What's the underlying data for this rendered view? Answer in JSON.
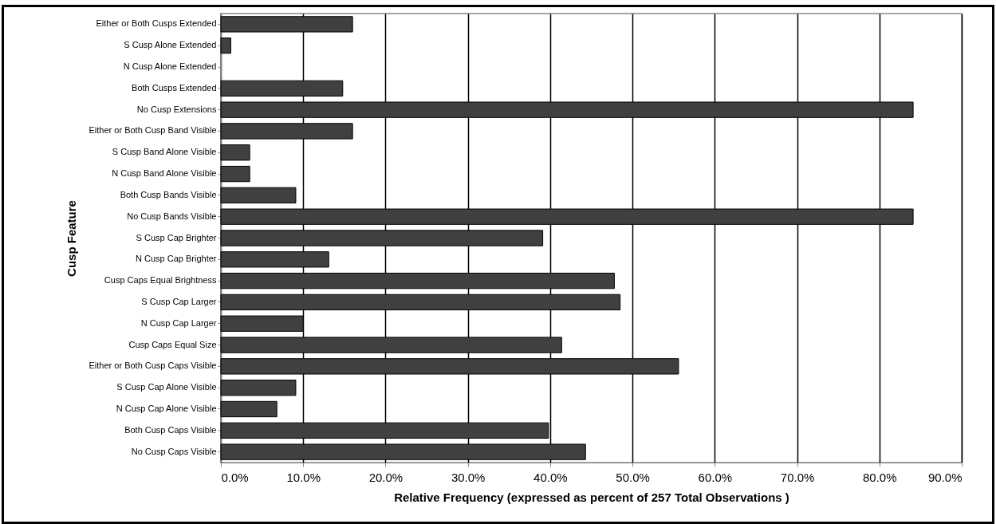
{
  "chart_data": {
    "type": "bar",
    "orientation": "horizontal",
    "xlabel": "Relative Frequency (expressed as percent of 257 Total Observations )",
    "ylabel": "Cusp Feature",
    "categories": [
      "Either or Both Cusps Extended",
      "S Cusp Alone Extended",
      "N Cusp Alone Extended",
      "Both Cusps Extended",
      "No Cusp Extensions",
      "Either or Both Cusp Band Visible",
      "S Cusp Band Alone Visible",
      "N Cusp Band Alone Visible",
      "Both Cusp Bands Visible",
      "No Cusp Bands Visible",
      "S Cusp Cap Brighter",
      "N Cusp Cap Brighter",
      "Cusp Caps Equal Brightness",
      "S Cusp Cap Larger",
      "N Cusp Cap Larger",
      "Cusp Caps Equal Size",
      "Either or Both Cusp Caps Visible",
      "S Cusp Cap Alone Visible",
      "N Cusp Cap Alone Visible",
      "Both Cusp Caps Visible",
      "No Cusp Caps Visible"
    ],
    "values": [
      16.0,
      1.2,
      0,
      14.8,
      84.1,
      16.0,
      3.5,
      3.5,
      9.1,
      84.1,
      39.1,
      13.1,
      47.8,
      48.5,
      10.0,
      41.4,
      55.6,
      9.1,
      6.8,
      39.8,
      44.3
    ],
    "color": "#404040",
    "xlim": [
      0,
      90
    ],
    "xticks": [
      {
        "value": 0,
        "label": "0.0%"
      },
      {
        "value": 10,
        "label": "10.0%"
      },
      {
        "value": 20,
        "label": "20.0%"
      },
      {
        "value": 30,
        "label": "30.0%"
      },
      {
        "value": 40,
        "label": "40.0%"
      },
      {
        "value": 50,
        "label": "50.0%"
      },
      {
        "value": 60,
        "label": "60.0%"
      },
      {
        "value": 70,
        "label": "70.0%"
      },
      {
        "value": 80,
        "label": "80.0%"
      },
      {
        "value": 90,
        "label": "90.0%"
      }
    ],
    "grid": "x"
  }
}
